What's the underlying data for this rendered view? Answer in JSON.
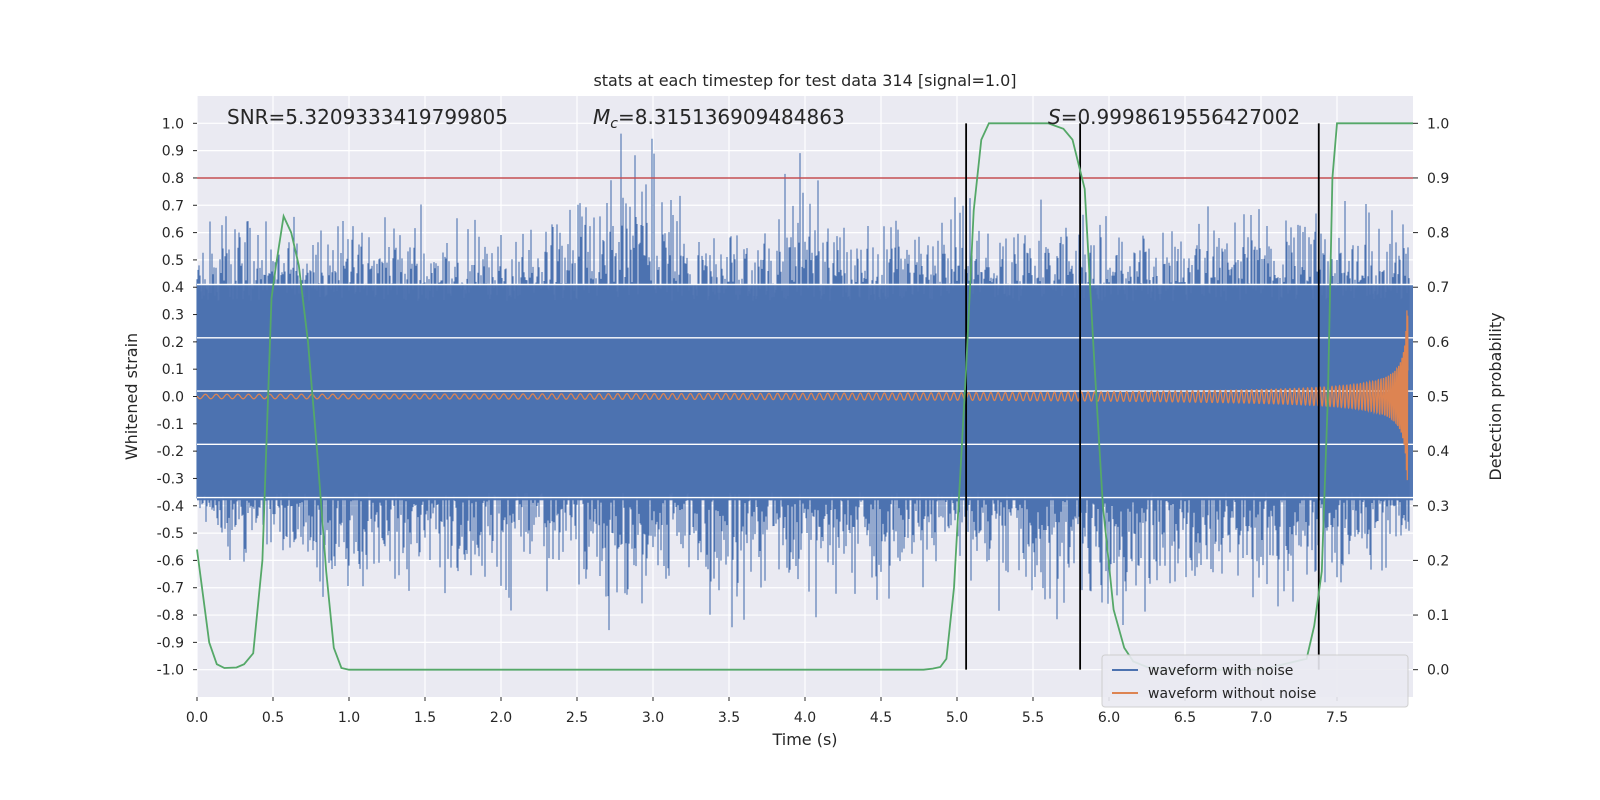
{
  "chart_data": {
    "type": "line",
    "title": "stats at each timestep for test data 314 [signal=1.0]",
    "xlabel": "Time (s)",
    "ylabel": "Whitened strain",
    "y2label": "Detection probability",
    "xlim": [
      0.0,
      8.0
    ],
    "ylim": [
      -1.1,
      1.1
    ],
    "y2lim": [
      -0.05,
      1.05
    ],
    "grid": true,
    "x_ticks": [
      0.0,
      0.5,
      1.0,
      1.5,
      2.0,
      2.5,
      3.0,
      3.5,
      4.0,
      4.5,
      5.0,
      5.5,
      6.0,
      6.5,
      7.0,
      7.5
    ],
    "x_tick_labels": [
      "0.0",
      "0.5",
      "1.0",
      "1.5",
      "2.0",
      "2.5",
      "3.0",
      "3.5",
      "4.0",
      "4.5",
      "5.0",
      "5.5",
      "6.0",
      "6.5",
      "7.0",
      "7.5"
    ],
    "y_ticks": [
      1.0,
      0.9,
      0.8,
      0.7,
      0.6,
      0.5,
      0.4,
      0.3,
      0.2,
      0.1,
      0.0,
      -0.1,
      -0.2,
      -0.3,
      -0.4,
      -0.5,
      -0.6,
      -0.7,
      -0.8,
      -0.9,
      -1.0
    ],
    "y_tick_labels": [
      "1.0",
      "0.9",
      "0.8",
      "0.7",
      "0.6",
      "0.5",
      "0.4",
      "0.3",
      "0.2",
      "0.1",
      "0.0",
      "-0.1",
      "-0.2",
      "-0.3",
      "-0.4",
      "-0.5",
      "-0.6",
      "-0.7",
      "-0.8",
      "-0.9",
      "-1.0"
    ],
    "y2_ticks": [
      1.0,
      0.9,
      0.8,
      0.7,
      0.6,
      0.5,
      0.4,
      0.3,
      0.2,
      0.1,
      0.0
    ],
    "y2_tick_labels": [
      "1.0",
      "0.9",
      "0.8",
      "0.7",
      "0.6",
      "0.5",
      "0.4",
      "0.3",
      "0.2",
      "0.1",
      "0.0"
    ],
    "annotations": {
      "snr": "SNR=5.3209333419799805",
      "mc_symbol": "M",
      "mc_sub": "c",
      "mc_value": "=8.315136909484863",
      "s_symbol": "S",
      "s_value": "=0.9998619556427002"
    },
    "threshold": {
      "value": 0.9,
      "axis": "right",
      "color": "#c44e52"
    },
    "detection_boundaries": [
      5.06,
      5.81,
      7.38
    ],
    "noise_envelope": {
      "name": "waveform with noise",
      "color": "#4c72b0",
      "t": [
        0.0,
        0.25,
        0.5,
        0.75,
        1.0,
        1.25,
        1.5,
        1.75,
        2.0,
        2.25,
        2.5,
        2.75,
        3.0,
        3.25,
        3.5,
        3.75,
        4.0,
        4.25,
        4.5,
        4.75,
        5.0,
        5.25,
        5.5,
        5.75,
        6.0,
        6.25,
        6.5,
        6.75,
        7.0,
        7.25,
        7.5,
        7.75,
        8.0
      ],
      "max": [
        0.73,
        0.68,
        0.7,
        0.7,
        0.68,
        0.66,
        0.72,
        0.64,
        0.66,
        0.7,
        0.84,
        1.0,
        0.95,
        0.7,
        0.66,
        0.72,
        0.92,
        0.72,
        0.68,
        0.66,
        0.78,
        0.76,
        0.73,
        0.72,
        0.68,
        0.66,
        0.7,
        0.7,
        0.74,
        0.92,
        0.72,
        0.7,
        0.66
      ],
      "min": [
        -0.45,
        -0.65,
        -0.6,
        -0.78,
        -0.88,
        -0.7,
        -0.82,
        -0.76,
        -0.84,
        -0.7,
        -0.76,
        -0.9,
        -0.86,
        -0.74,
        -0.88,
        -0.76,
        -0.82,
        -0.78,
        -0.8,
        -0.74,
        -0.76,
        -0.78,
        -0.82,
        -0.85,
        -0.98,
        -0.84,
        -0.8,
        -0.78,
        -0.88,
        -0.92,
        -0.72,
        -0.68,
        -0.58
      ]
    },
    "signal_series": {
      "name": "waveform without noise",
      "color": "#dd8452",
      "t_merge": 7.97,
      "amplitude_start": 0.008,
      "amplitude_end": 0.33
    },
    "probability_series": {
      "name": "Detection probability",
      "color": "#55a868",
      "axis": "right",
      "t": [
        0.0,
        0.08,
        0.13,
        0.18,
        0.26,
        0.31,
        0.37,
        0.43,
        0.49,
        0.52,
        0.57,
        0.62,
        0.67,
        0.73,
        0.79,
        0.85,
        0.9,
        0.95,
        1.0,
        1.5,
        2.0,
        2.5,
        3.0,
        3.5,
        4.0,
        4.5,
        4.78,
        4.84,
        4.89,
        4.93,
        4.98,
        5.06,
        5.11,
        5.16,
        5.21,
        5.3,
        5.4,
        5.5,
        5.6,
        5.7,
        5.76,
        5.84,
        5.9,
        5.96,
        6.03,
        6.1,
        6.16,
        6.25,
        6.35,
        6.5,
        7.0,
        7.3,
        7.35,
        7.4,
        7.44,
        7.47,
        7.5,
        7.6,
        7.8,
        8.0
      ],
      "values": [
        0.22,
        0.05,
        0.01,
        0.003,
        0.004,
        0.01,
        0.03,
        0.2,
        0.68,
        0.74,
        0.83,
        0.8,
        0.74,
        0.6,
        0.4,
        0.18,
        0.04,
        0.003,
        0.0,
        0.0,
        0.0,
        0.0,
        0.0,
        0.0,
        0.0,
        0.0,
        0.0,
        0.002,
        0.005,
        0.02,
        0.15,
        0.55,
        0.84,
        0.97,
        1.0,
        1.0,
        1.0,
        1.0,
        1.0,
        0.99,
        0.97,
        0.88,
        0.58,
        0.3,
        0.11,
        0.04,
        0.015,
        0.005,
        0.002,
        0.0,
        0.0,
        0.02,
        0.08,
        0.18,
        0.5,
        0.9,
        1.0,
        1.0,
        1.0,
        1.0
      ]
    },
    "legend": {
      "placement": "lower-right",
      "entries": [
        {
          "label": "waveform with noise",
          "color": "#4c72b0"
        },
        {
          "label": "waveform without noise",
          "color": "#dd8452"
        }
      ]
    }
  }
}
